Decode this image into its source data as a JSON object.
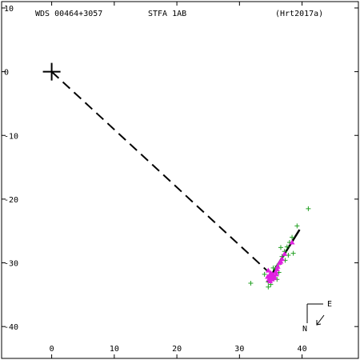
{
  "header": {
    "left": "WDS 00464+3057",
    "center": "STFA  1AB",
    "right": "(Hrt2017a)"
  },
  "compass": {
    "east": "E",
    "north": "N"
  },
  "chart_data": {
    "type": "scatter",
    "title": "",
    "xlabel": "",
    "ylabel": "",
    "xlim": [
      -8,
      49
    ],
    "ylim": [
      -45,
      11
    ],
    "x_ticks": [
      0,
      10,
      20,
      30,
      40
    ],
    "y_ticks": [
      10,
      0,
      -10,
      -20,
      -30,
      -40
    ],
    "primary": {
      "x": 0,
      "y": 0
    },
    "connector": {
      "from": [
        0,
        0
      ],
      "to": [
        34.6,
        -31.4
      ],
      "style": "dashed"
    },
    "orbit_segment": {
      "from": [
        34.4,
        -33.0
      ],
      "to": [
        39.6,
        -24.8
      ]
    },
    "colors": {
      "green": "#22a022",
      "magenta": "#e020e0",
      "black": "#000000"
    },
    "series": [
      {
        "marker": "plus",
        "color": "green",
        "points": [
          [
            41,
            -21.5
          ],
          [
            39.2,
            -24.2
          ],
          [
            38.4,
            -26.0
          ],
          [
            38.0,
            -26.8
          ],
          [
            37.6,
            -27.5
          ],
          [
            38.6,
            -28.5
          ],
          [
            37.2,
            -28.2
          ],
          [
            36.8,
            -29.0
          ],
          [
            37.3,
            -29.6
          ],
          [
            36.5,
            -30.0
          ],
          [
            36.0,
            -30.5
          ],
          [
            35.8,
            -31.0
          ],
          [
            36.3,
            -31.5
          ],
          [
            34.0,
            -31.8
          ],
          [
            35.2,
            -32.0
          ],
          [
            35.5,
            -32.4
          ],
          [
            36.0,
            -32.6
          ],
          [
            34.6,
            -33.0
          ],
          [
            35.0,
            -33.4
          ],
          [
            31.8,
            -33.2
          ],
          [
            34.6,
            -33.8
          ],
          [
            36.6,
            -27.6
          ],
          [
            35.4,
            -30.8
          ],
          [
            37.8,
            -28.8
          ]
        ]
      },
      {
        "marker": "triangle",
        "color": "magenta",
        "points": [
          [
            34.6,
            -31.2
          ],
          [
            35.0,
            -31.6
          ],
          [
            34.8,
            -32.0
          ],
          [
            35.3,
            -31.8
          ],
          [
            35.1,
            -32.3
          ],
          [
            34.7,
            -32.6
          ],
          [
            35.5,
            -32.0
          ],
          [
            35.8,
            -31.4
          ],
          [
            36.1,
            -30.6
          ],
          [
            36.4,
            -30.0
          ],
          [
            36.8,
            -29.4
          ],
          [
            37.2,
            -28.6
          ],
          [
            35.6,
            -32.4
          ],
          [
            34.9,
            -32.9
          ],
          [
            36.0,
            -31.0
          ],
          [
            38.4,
            -26.8
          ],
          [
            36.6,
            -29.8
          ],
          [
            35.2,
            -32.6
          ],
          [
            34.5,
            -32.2
          ],
          [
            35.9,
            -31.8
          ]
        ]
      }
    ]
  }
}
